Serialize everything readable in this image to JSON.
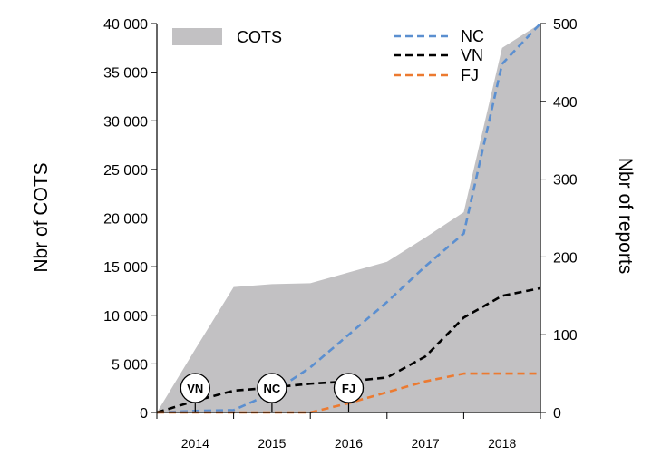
{
  "chart_data": {
    "type": "area",
    "title": "",
    "x_categories": [
      "2014",
      "2015",
      "2016",
      "2017",
      "2018"
    ],
    "x": [
      2013.5,
      2014.0,
      2014.5,
      2015.0,
      2015.5,
      2016.0,
      2016.5,
      2017.0,
      2017.5,
      2018.0
    ],
    "left_axis": {
      "label": "Nbr of COTS",
      "ylim": [
        0,
        40000
      ],
      "ticks": [
        0,
        5000,
        10000,
        15000,
        20000,
        25000,
        30000,
        35000,
        40000
      ],
      "tick_labels": [
        "0",
        "5 000",
        "10 000",
        "15 000",
        "20 000",
        "25 000",
        "30 000",
        "35 000",
        "40 000"
      ]
    },
    "right_axis": {
      "label": "Nbr of reports",
      "ylim": [
        0,
        500
      ],
      "ticks": [
        0,
        100,
        200,
        300,
        400,
        500
      ],
      "tick_labels": [
        "0",
        "100",
        "200",
        "300",
        "400",
        "500"
      ]
    },
    "area_series": {
      "name": "COTS",
      "axis": "left",
      "color": "#c2c1c3",
      "x": [
        2013.5,
        2014.0,
        2014.5,
        2015.0,
        2015.5,
        2016.0,
        2016.5,
        2017.0,
        2017.5,
        2018.0
      ],
      "values": [
        0,
        6500,
        12900,
        13200,
        13300,
        14400,
        15500,
        18000,
        20600,
        37500
      ]
    },
    "line_series": [
      {
        "name": "NC",
        "axis": "right",
        "color": "#5b8fd0",
        "x": [
          2013.5,
          2014.0,
          2014.5,
          2015.0,
          2015.5,
          2016.0,
          2016.5,
          2017.0,
          2017.5,
          2018.0
        ],
        "values": [
          0,
          2,
          3,
          25,
          58,
          100,
          142,
          188,
          230,
          448
        ]
      },
      {
        "name": "VN",
        "axis": "right",
        "color": "#000000",
        "x": [
          2013.5,
          2014.0,
          2014.5,
          2015.0,
          2015.5,
          2016.0,
          2016.5,
          2017.0,
          2017.5,
          2018.0
        ],
        "values": [
          0,
          15,
          28,
          32,
          37,
          40,
          45,
          72,
          122,
          150
        ]
      },
      {
        "name": "FJ",
        "axis": "right",
        "color": "#ec7a30",
        "x": [
          2013.5,
          2014.0,
          2014.5,
          2015.0,
          2015.5,
          2016.0,
          2016.5,
          2017.0,
          2017.5,
          2018.0
        ],
        "values": [
          0,
          0,
          0,
          0,
          0,
          12,
          26,
          40,
          50,
          50
        ]
      }
    ],
    "event_markers": [
      {
        "label": "VN",
        "x": 2014.0,
        "axis_value": 0
      },
      {
        "label": "NC",
        "x": 2015.0,
        "axis_value": 0
      },
      {
        "label": "FJ",
        "x": 2016.0,
        "axis_value": 0
      }
    ],
    "legend": {
      "position": "top",
      "items": [
        "COTS",
        "NC",
        "VN",
        "FJ"
      ]
    },
    "grid": false
  }
}
